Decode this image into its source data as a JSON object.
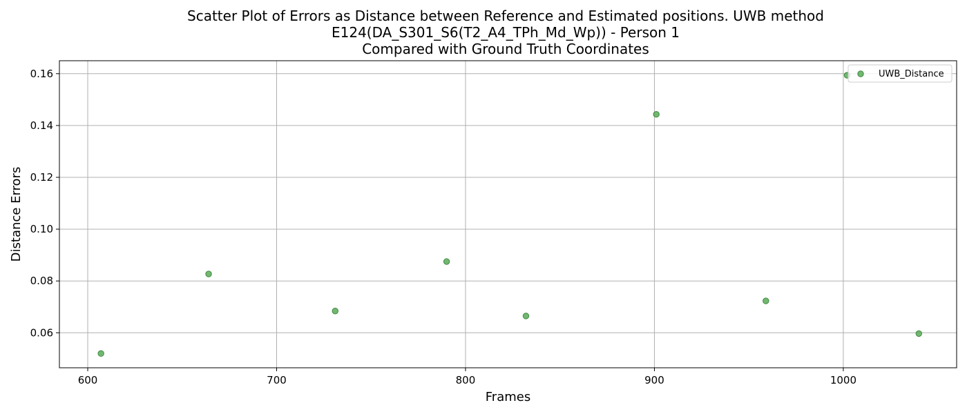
{
  "chart_data": {
    "type": "scatter",
    "title_lines": [
      "Scatter Plot of Errors as Distance between Reference and Estimated positions. UWB method",
      "E124(DA_S301_S6(T2_A4_TPh_Md_Wp)) - Person 1",
      "Compared with Ground Truth Coordinates"
    ],
    "xlabel": "Frames",
    "ylabel": "Distance Errors",
    "xlim": [
      585,
      1060
    ],
    "ylim": [
      0.0465,
      0.165
    ],
    "x_ticks": [
      600,
      700,
      800,
      900,
      1000
    ],
    "y_ticks": [
      0.06,
      0.08,
      0.1,
      0.12,
      0.14,
      0.16
    ],
    "x_tick_labels": [
      "600",
      "700",
      "800",
      "900",
      "1000"
    ],
    "y_tick_labels": [
      "0.06",
      "0.08",
      "0.10",
      "0.12",
      "0.14",
      "0.16"
    ],
    "grid": true,
    "legend_position": "top-right",
    "series": [
      {
        "name": "UWB_Distance",
        "color": "#5aaa5a",
        "x": [
          607,
          664,
          731,
          790,
          832,
          901,
          959,
          1002,
          1040
        ],
        "y": [
          0.052,
          0.0827,
          0.0684,
          0.0875,
          0.0665,
          0.1443,
          0.0723,
          0.1594,
          0.0597
        ]
      }
    ]
  }
}
